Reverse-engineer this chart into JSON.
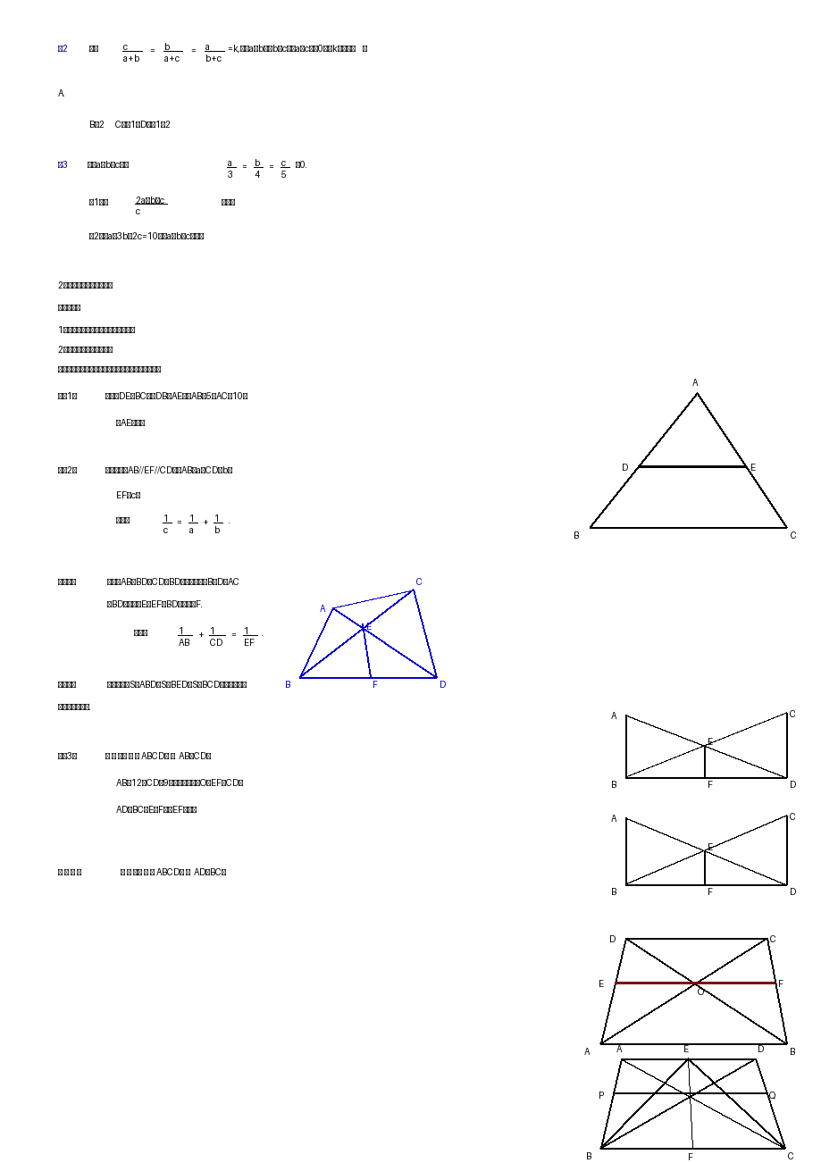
{
  "bg_color": "#ffffff",
  "fig_width": 9.2,
  "fig_height": 13.02,
  "dpi": 100
}
